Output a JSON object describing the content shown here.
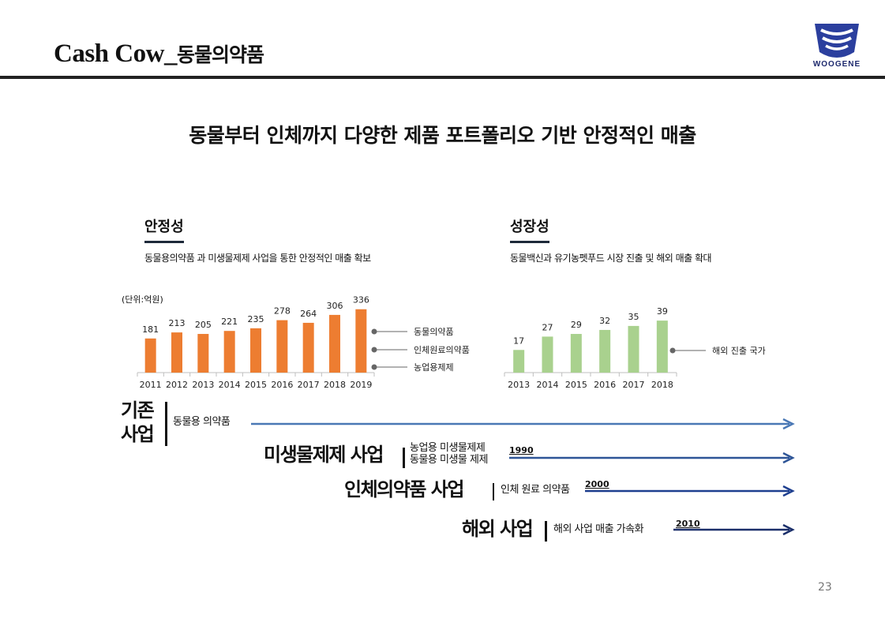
{
  "header": {
    "title": "Cash Cow_",
    "title_ko": "동물의약품",
    "logo_text": "WOOGENE"
  },
  "subtitle": "동물부터 인체까지 다양한 제품 포트폴리오 기반 안정적인 매출",
  "stability": {
    "heading": "안정성",
    "description": "동물용의약품 과 미생물제제 사업을 통한 안정적인 매출 확보",
    "unit": "(단위:억원)"
  },
  "growth": {
    "heading": "성장성",
    "description": "동물백신과 유기농펫푸드 시장 진출 및 해외 매출 확대"
  },
  "chart_data": [
    {
      "type": "bar",
      "categories": [
        "2011",
        "2012",
        "2013",
        "2014",
        "2015",
        "2016",
        "2017",
        "2018",
        "2019"
      ],
      "values": [
        181,
        213,
        205,
        221,
        235,
        278,
        264,
        306,
        336
      ],
      "ylim": [
        0,
        360
      ],
      "color": "#ed7d31",
      "title": "",
      "xlabel": "",
      "ylabel": "",
      "legend": [
        "동물의약품",
        "인체원료의약품",
        "농업용제제"
      ],
      "legend_position": "right"
    },
    {
      "type": "bar",
      "categories": [
        "2013",
        "2014",
        "2015",
        "2016",
        "2017",
        "2018"
      ],
      "values": [
        17,
        27,
        29,
        32,
        35,
        39
      ],
      "ylim": [
        0,
        45
      ],
      "color": "#a9d18e",
      "title": "",
      "xlabel": "",
      "ylabel": "",
      "legend": [
        "해외 진출 국가"
      ],
      "legend_position": "right"
    }
  ],
  "timeline": {
    "existing": {
      "title_line1": "기존",
      "title_line2": "사업",
      "desc": "동물용 의약품",
      "color": "#4a78b5"
    },
    "microbial": {
      "title": "미생물제제 사업",
      "desc_line1": "농업용 미생물제제",
      "desc_line2": "동물용 미생물 제제",
      "year": "1990",
      "color": "#2e5597"
    },
    "human": {
      "title": "인체의약품 사업",
      "desc": "인체 원료 의약품",
      "year": "2000",
      "color": "#1e3f8f"
    },
    "overseas": {
      "title": "해외 사업",
      "desc": "해외 사업 매출 가속화",
      "year": "2010",
      "color": "#1b2f6a"
    }
  },
  "page_number": "23"
}
